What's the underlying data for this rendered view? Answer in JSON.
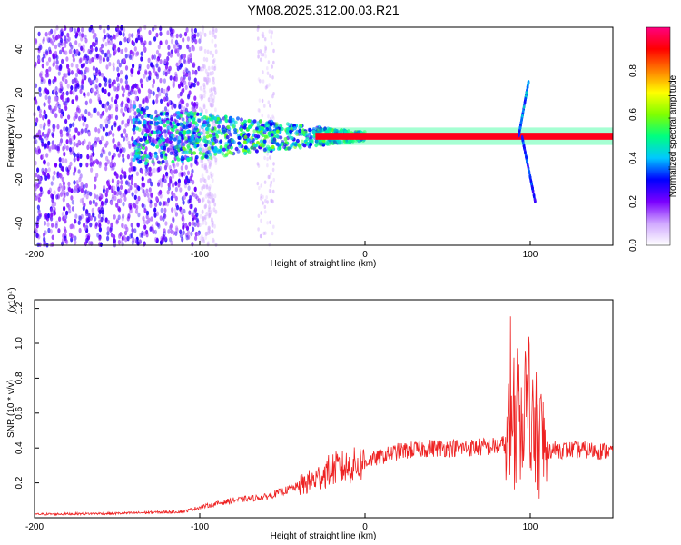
{
  "figure": {
    "title": "YM08.2025.312.00.03.R21"
  },
  "chart_data": [
    {
      "type": "heatmap",
      "xlabel": "Height of straight line (km)",
      "ylabel": "Frequency (Hz)",
      "xlim": [
        -200,
        150
      ],
      "ylim": [
        -50,
        50
      ],
      "xticks": [
        -200,
        -100,
        0,
        100
      ],
      "yticks": [
        -40,
        -20,
        0,
        20,
        40
      ],
      "colorbar": {
        "label": "Normalized spectral amplitude",
        "range": [
          0,
          1
        ],
        "ticks": [
          "0.0",
          "0.2",
          "0.4",
          "0.6",
          "0.8"
        ],
        "colors": [
          "#ffffff",
          "#d0a8ff",
          "#7a00ff",
          "#0000ff",
          "#00c8ff",
          "#00ff80",
          "#80ff00",
          "#ffff00",
          "#ff8000",
          "#ff0000",
          "#ff0080"
        ]
      },
      "features": {
        "carrier_frequency_hz": 0,
        "noise_region_km": [
          -200,
          -100
        ],
        "burst_center_km": 95,
        "burst_frequency_span_hz": [
          -35,
          25
        ]
      }
    },
    {
      "type": "line",
      "xlabel": "Height of straight line (km)",
      "ylabel": "SNR (10 * v/v)",
      "scale_label": "(x10⁴)",
      "xlim": [
        -200,
        150
      ],
      "ylim": [
        0,
        1.25
      ],
      "xticks": [
        -200,
        -100,
        0,
        100
      ],
      "yticks": [
        "0.2",
        "0.4",
        "0.6",
        "0.8",
        "1.0",
        "1.2"
      ],
      "color": "#ee2222",
      "series": [
        {
          "x": [
            -200,
            -150,
            -110,
            -100,
            -80,
            -60,
            -40,
            -30,
            -20,
            -10,
            0,
            20,
            40,
            60,
            80,
            88,
            92,
            95,
            97,
            100,
            103,
            106,
            110,
            130,
            150
          ],
          "y": [
            0.02,
            0.025,
            0.035,
            0.06,
            0.1,
            0.12,
            0.18,
            0.22,
            0.28,
            0.29,
            0.32,
            0.38,
            0.4,
            0.4,
            0.41,
            0.43,
            0.5,
            0.6,
            0.7,
            0.4,
            0.5,
            0.45,
            0.39,
            0.39,
            0.38
          ]
        }
      ]
    }
  ]
}
